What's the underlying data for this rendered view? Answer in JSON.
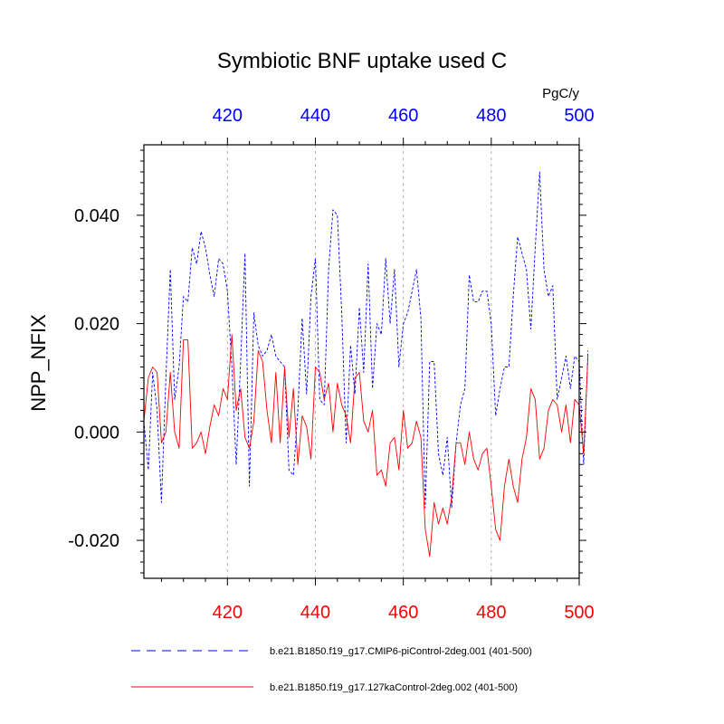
{
  "chart_data": {
    "type": "line",
    "title": "Symbiotic BNF uptake used C",
    "units": "PgC/y",
    "ylabel": "NPP_NFIX",
    "xlim": [
      401,
      500
    ],
    "ylim": [
      -0.027,
      0.053
    ],
    "x_ticks_labeled": [
      "420",
      "440",
      "460",
      "480",
      "500"
    ],
    "x_tick_values": [
      420,
      440,
      460,
      480,
      500
    ],
    "y_ticks_labeled": [
      "0.040",
      "0.020",
      "0.000",
      "-0.020"
    ],
    "y_tick_values": [
      0.04,
      0.02,
      0.0,
      -0.02
    ],
    "bottom_axis_color": "#ff0000",
    "top_axis_color": "#0000ff",
    "gridlines": "vertical dashed at major ticks",
    "legend_position": "bottom",
    "series": [
      {
        "name": "b.e21.B1850.f19_g17.CMIP6-piControl-2deg.001 (401-500)",
        "color": "#0000ff",
        "style": "dashed",
        "x_start": 401,
        "values": [
          0.002,
          -0.007,
          0.011,
          0.004,
          -0.013,
          0.01,
          0.03,
          0.006,
          0.012,
          0.025,
          0.024,
          0.034,
          0.031,
          0.037,
          0.034,
          0.029,
          0.025,
          0.032,
          0.031,
          0.026,
          0.012,
          -0.006,
          0.013,
          0.033,
          -0.01,
          0.022,
          0.016,
          0.014,
          0.015,
          0.018,
          0.014,
          0.013,
          0.012,
          -0.007,
          -0.008,
          0.004,
          0.021,
          0.007,
          0.025,
          0.032,
          0.006,
          0.005,
          0.03,
          0.041,
          0.04,
          0.022,
          -0.002,
          0.016,
          0.007,
          0.023,
          0.011,
          0.031,
          0.008,
          0.02,
          0.018,
          0.032,
          0.02,
          0.03,
          0.012,
          0.02,
          0.022,
          0.026,
          0.03,
          0.021,
          -0.014,
          0.013,
          0.013,
          -0.004,
          -0.008,
          -0.001,
          -0.014,
          -0.002,
          0.005,
          0.008,
          0.029,
          0.024,
          0.024,
          0.026,
          0.026,
          0.02,
          0.003,
          0.008,
          0.012,
          0.012,
          0.025,
          0.036,
          0.033,
          0.03,
          0.019,
          0.034,
          0.048,
          0.03,
          0.025,
          0.027,
          0.006,
          0.01,
          0.014,
          0.008,
          0.014,
          0.013,
          -0.006,
          0.015
        ]
      },
      {
        "name": "b.e21.B1850.f19_g17.127kaControl-2deg.002 (401-500)",
        "color": "#ff0000",
        "style": "solid",
        "x_start": 401,
        "values": [
          0.002,
          0.01,
          0.012,
          0.011,
          -0.002,
          0.0,
          0.011,
          0.0,
          -0.003,
          0.017,
          0.017,
          -0.003,
          -0.002,
          0.0,
          -0.004,
          0.001,
          0.005,
          0.003,
          0.008,
          0.006,
          0.018,
          0.004,
          0.008,
          -0.001,
          -0.003,
          0.002,
          0.015,
          0.013,
          0.004,
          -0.002,
          0.011,
          -0.002,
          0.012,
          -0.001,
          0.008,
          -0.006,
          0.003,
          0.001,
          -0.005,
          0.012,
          0.011,
          0.006,
          0.009,
          0.0,
          0.009,
          0.005,
          0.003,
          -0.002,
          0.01,
          0.011,
          0.002,
          0.0,
          0.004,
          -0.008,
          -0.007,
          -0.01,
          -0.002,
          -0.001,
          -0.007,
          0.004,
          -0.003,
          -0.002,
          0.002,
          -0.001,
          -0.018,
          -0.023,
          -0.013,
          -0.017,
          -0.014,
          -0.017,
          -0.012,
          -0.002,
          -0.002,
          -0.006,
          0.0,
          -0.005,
          -0.007,
          -0.004,
          -0.003,
          -0.01,
          -0.018,
          -0.02,
          -0.01,
          -0.005,
          -0.01,
          -0.013,
          -0.005,
          -0.001,
          0.008,
          0.006,
          -0.005,
          -0.003,
          0.004,
          0.006,
          0.005,
          0.0,
          0.005,
          -0.002,
          0.006,
          0.005,
          -0.004,
          0.014
        ]
      }
    ]
  }
}
